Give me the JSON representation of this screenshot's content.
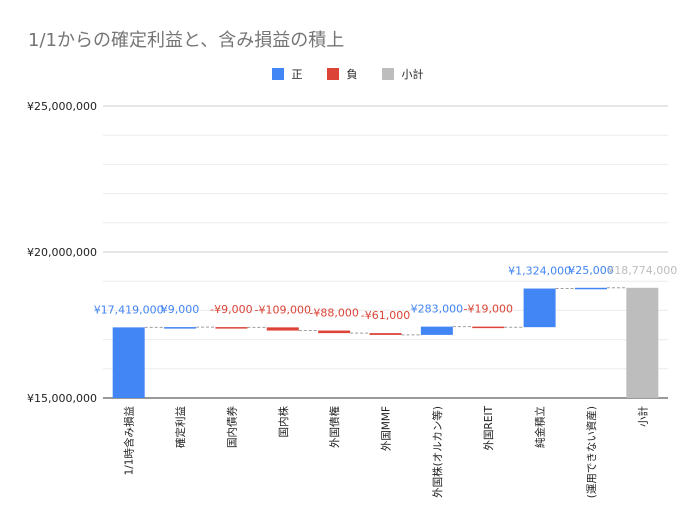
{
  "title": "1/1からの確定利益と、含み損益の積上",
  "colors": {
    "positive": "#4285f4",
    "negative": "#db4437",
    "subtotal": "#bdbdbd",
    "grid": "#e0e0e0",
    "axis": "#333333"
  },
  "legend": [
    {
      "label": "正",
      "color": "#4285f4"
    },
    {
      "label": "負",
      "color": "#db4437"
    },
    {
      "label": "小計",
      "color": "#bdbdbd"
    }
  ],
  "chart_data": {
    "type": "bar",
    "subtype": "waterfall",
    "title": "1/1からの確定利益と、含み損益の積上",
    "xlabel": "",
    "ylabel": "",
    "ylim": [
      15000000,
      25000000
    ],
    "y_ticks": [
      {
        "value": 15000000,
        "label": "¥15,000,000"
      },
      {
        "value": 20000000,
        "label": "¥20,000,000"
      },
      {
        "value": 25000000,
        "label": "¥25,000,000"
      }
    ],
    "grid": true,
    "legend_position": "top",
    "categories": [
      "1/1時含み損益",
      "確定利益",
      "国内債券",
      "国内株",
      "外国債権",
      "外国MMF",
      "外国株(オルカン等)",
      "外国REIT",
      "純金積立",
      "(運用できない資産)",
      "小計"
    ],
    "bars": [
      {
        "category": "1/1時含み損益",
        "kind": "positive",
        "start": 15000000,
        "end": 17419000,
        "label": "¥17,419,000"
      },
      {
        "category": "確定利益",
        "kind": "positive",
        "start": 17419000,
        "end": 17428000,
        "label": "¥9,000"
      },
      {
        "category": "国内債券",
        "kind": "negative",
        "start": 17428000,
        "end": 17419000,
        "label": "-¥9,000"
      },
      {
        "category": "国内株",
        "kind": "negative",
        "start": 17419000,
        "end": 17310000,
        "label": "-¥109,000"
      },
      {
        "category": "外国債権",
        "kind": "negative",
        "start": 17310000,
        "end": 17222000,
        "label": "-¥88,000"
      },
      {
        "category": "外国MMF",
        "kind": "negative",
        "start": 17222000,
        "end": 17161000,
        "label": "-¥61,000"
      },
      {
        "category": "外国株(オルカン等)",
        "kind": "positive",
        "start": 17161000,
        "end": 17444000,
        "label": "¥283,000"
      },
      {
        "category": "外国REIT",
        "kind": "negative",
        "start": 17444000,
        "end": 17425000,
        "label": "-¥19,000"
      },
      {
        "category": "純金積立",
        "kind": "positive",
        "start": 17425000,
        "end": 18749000,
        "label": "¥1,324,000"
      },
      {
        "category": "(運用できない資産)",
        "kind": "positive",
        "start": 18749000,
        "end": 18774000,
        "label": "¥25,000"
      },
      {
        "category": "小計",
        "kind": "subtotal",
        "start": 15000000,
        "end": 18774000,
        "label": "¥18,774,000"
      }
    ]
  }
}
